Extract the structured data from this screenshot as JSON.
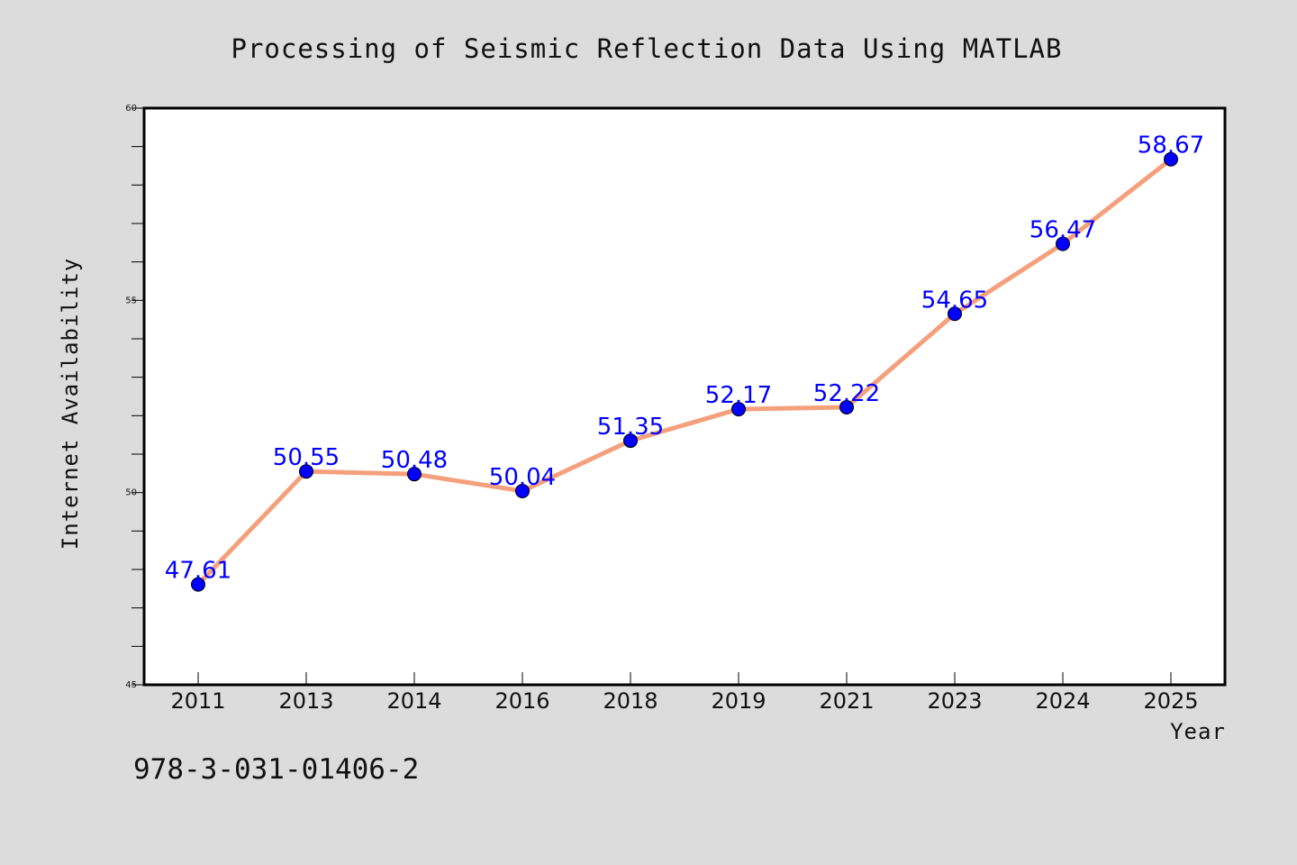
{
  "chart_data": {
    "type": "line",
    "title": "Processing of Seismic Reflection Data Using MATLAB",
    "xlabel": "Year",
    "ylabel": "Internet Availability",
    "categories": [
      "2011",
      "2013",
      "2014",
      "2016",
      "2018",
      "2019",
      "2021",
      "2023",
      "2024",
      "2025"
    ],
    "series": [
      {
        "values": [
          47.61,
          50.55,
          50.48,
          50.04,
          51.35,
          52.17,
          52.22,
          54.65,
          56.47,
          58.67
        ],
        "labels": [
          "47.61",
          "50.55",
          "50.48",
          "50.04",
          "51.35",
          "52.17",
          "52.22",
          "54.65",
          "56.47",
          "58.67"
        ]
      }
    ],
    "ylim": [
      45,
      60
    ],
    "yticks": [
      "45",
      "50",
      "55",
      "60"
    ],
    "grid": false,
    "colors": {
      "line": "#f4a07c",
      "marker": "#0000ff",
      "label": "#0000ff",
      "background": "#dcdcdc",
      "plot_bg": "#ffffff"
    }
  },
  "footer": {
    "isbn": "978-3-031-01406-2"
  }
}
